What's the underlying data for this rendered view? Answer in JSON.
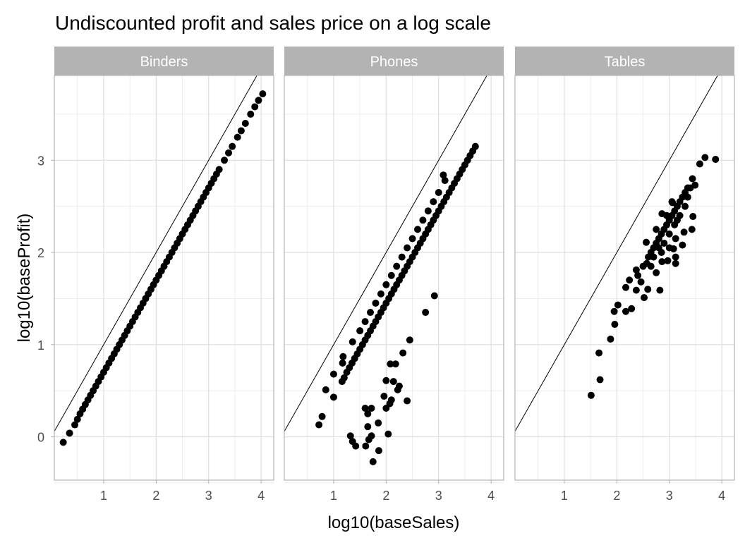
{
  "chart_data": {
    "type": "scatter",
    "title": "Undiscounted profit and  sales price on a log scale",
    "xlabel": "log10(baseSales)",
    "ylabel": "log10(baseProfit)",
    "xlim": [
      0.06,
      4.24
    ],
    "ylim": [
      -0.47,
      3.92
    ],
    "x_ticks": [
      1,
      2,
      3,
      4
    ],
    "y_ticks": [
      0,
      1,
      2,
      3
    ],
    "grid": true,
    "reference_line": {
      "slope": 1,
      "intercept": 0
    },
    "point_color": "#000000",
    "panels": [
      {
        "name": "Binders",
        "points": [
          [
            0.23,
            -0.06
          ],
          [
            0.35,
            0.04
          ],
          [
            0.45,
            0.13
          ],
          [
            0.5,
            0.19
          ],
          [
            0.55,
            0.25
          ],
          [
            0.6,
            0.3
          ],
          [
            0.65,
            0.35
          ],
          [
            0.7,
            0.4
          ],
          [
            0.75,
            0.45
          ],
          [
            0.8,
            0.5
          ],
          [
            0.85,
            0.55
          ],
          [
            0.9,
            0.6
          ],
          [
            0.95,
            0.65
          ],
          [
            1.0,
            0.7
          ],
          [
            1.05,
            0.75
          ],
          [
            1.1,
            0.8
          ],
          [
            1.15,
            0.85
          ],
          [
            1.2,
            0.9
          ],
          [
            1.25,
            0.95
          ],
          [
            1.3,
            1.0
          ],
          [
            1.35,
            1.05
          ],
          [
            1.4,
            1.1
          ],
          [
            1.45,
            1.15
          ],
          [
            1.5,
            1.2
          ],
          [
            1.55,
            1.25
          ],
          [
            1.6,
            1.3
          ],
          [
            1.65,
            1.35
          ],
          [
            1.7,
            1.4
          ],
          [
            1.75,
            1.45
          ],
          [
            1.8,
            1.5
          ],
          [
            1.85,
            1.55
          ],
          [
            1.9,
            1.6
          ],
          [
            1.95,
            1.65
          ],
          [
            2.0,
            1.7
          ],
          [
            2.05,
            1.75
          ],
          [
            2.1,
            1.8
          ],
          [
            2.15,
            1.85
          ],
          [
            2.2,
            1.9
          ],
          [
            2.25,
            1.95
          ],
          [
            2.3,
            2.0
          ],
          [
            2.35,
            2.05
          ],
          [
            2.4,
            2.1
          ],
          [
            2.45,
            2.15
          ],
          [
            2.5,
            2.2
          ],
          [
            2.55,
            2.25
          ],
          [
            2.6,
            2.3
          ],
          [
            2.65,
            2.35
          ],
          [
            2.7,
            2.4
          ],
          [
            2.75,
            2.45
          ],
          [
            2.8,
            2.5
          ],
          [
            2.85,
            2.55
          ],
          [
            2.9,
            2.6
          ],
          [
            2.95,
            2.65
          ],
          [
            3.0,
            2.7
          ],
          [
            3.05,
            2.75
          ],
          [
            3.1,
            2.8
          ],
          [
            3.15,
            2.85
          ],
          [
            3.2,
            2.9
          ],
          [
            3.3,
            3.0
          ],
          [
            3.38,
            3.08
          ],
          [
            3.45,
            3.15
          ],
          [
            3.55,
            3.25
          ],
          [
            3.62,
            3.32
          ],
          [
            3.7,
            3.4
          ],
          [
            3.8,
            3.5
          ],
          [
            3.88,
            3.58
          ],
          [
            3.95,
            3.65
          ],
          [
            4.03,
            3.72
          ]
        ]
      },
      {
        "name": "Phones",
        "points": [
          [
            0.72,
            0.13
          ],
          [
            0.78,
            0.22
          ],
          [
            0.85,
            0.51
          ],
          [
            1.0,
            0.43
          ],
          [
            1.0,
            0.68
          ],
          [
            1.16,
            0.6
          ],
          [
            1.2,
            0.64
          ],
          [
            1.25,
            0.7
          ],
          [
            1.3,
            0.75
          ],
          [
            1.35,
            0.8
          ],
          [
            1.4,
            0.85
          ],
          [
            1.45,
            0.9
          ],
          [
            1.5,
            0.95
          ],
          [
            1.55,
            1.0
          ],
          [
            1.6,
            1.05
          ],
          [
            1.65,
            1.1
          ],
          [
            1.7,
            1.15
          ],
          [
            1.75,
            1.2
          ],
          [
            1.8,
            1.25
          ],
          [
            1.85,
            1.3
          ],
          [
            1.9,
            1.35
          ],
          [
            1.95,
            1.4
          ],
          [
            2.0,
            1.45
          ],
          [
            2.05,
            1.5
          ],
          [
            2.1,
            1.55
          ],
          [
            2.15,
            1.6
          ],
          [
            2.2,
            1.65
          ],
          [
            2.25,
            1.7
          ],
          [
            2.3,
            1.75
          ],
          [
            2.35,
            1.8
          ],
          [
            2.4,
            1.85
          ],
          [
            2.45,
            1.9
          ],
          [
            2.5,
            1.95
          ],
          [
            2.55,
            2.0
          ],
          [
            2.6,
            2.05
          ],
          [
            2.65,
            2.1
          ],
          [
            2.7,
            2.15
          ],
          [
            2.75,
            2.2
          ],
          [
            2.8,
            2.25
          ],
          [
            2.85,
            2.3
          ],
          [
            2.9,
            2.35
          ],
          [
            2.95,
            2.4
          ],
          [
            3.0,
            2.45
          ],
          [
            3.05,
            2.5
          ],
          [
            3.1,
            2.55
          ],
          [
            3.15,
            2.6
          ],
          [
            3.2,
            2.65
          ],
          [
            3.25,
            2.7
          ],
          [
            3.3,
            2.75
          ],
          [
            3.35,
            2.8
          ],
          [
            3.4,
            2.85
          ],
          [
            3.45,
            2.9
          ],
          [
            3.5,
            2.95
          ],
          [
            3.55,
            3.0
          ],
          [
            3.6,
            3.05
          ],
          [
            3.65,
            3.1
          ],
          [
            3.7,
            3.15
          ],
          [
            1.17,
            0.8
          ],
          [
            1.18,
            0.87
          ],
          [
            1.36,
            1.03
          ],
          [
            1.5,
            1.15
          ],
          [
            1.6,
            1.25
          ],
          [
            1.7,
            1.35
          ],
          [
            1.8,
            1.45
          ],
          [
            1.9,
            1.55
          ],
          [
            2.0,
            1.65
          ],
          [
            2.1,
            1.75
          ],
          [
            2.2,
            1.85
          ],
          [
            2.3,
            1.95
          ],
          [
            2.4,
            2.05
          ],
          [
            2.5,
            2.15
          ],
          [
            2.6,
            2.25
          ],
          [
            2.7,
            2.35
          ],
          [
            2.8,
            2.45
          ],
          [
            2.9,
            2.55
          ],
          [
            3.0,
            2.65
          ],
          [
            3.09,
            2.84
          ],
          [
            3.12,
            2.78
          ],
          [
            2.92,
            1.53
          ],
          [
            2.75,
            1.35
          ],
          [
            2.45,
            1.05
          ],
          [
            2.32,
            0.91
          ],
          [
            2.08,
            0.79
          ],
          [
            2.18,
            0.79
          ],
          [
            2.0,
            0.61
          ],
          [
            2.14,
            0.6
          ],
          [
            2.25,
            0.55
          ],
          [
            2.22,
            0.51
          ],
          [
            1.96,
            0.44
          ],
          [
            2.1,
            0.4
          ],
          [
            2.07,
            0.36
          ],
          [
            2.4,
            0.39
          ],
          [
            2.0,
            0.31
          ],
          [
            1.6,
            0.31
          ],
          [
            1.72,
            0.31
          ],
          [
            1.65,
            0.25
          ],
          [
            1.85,
            0.15
          ],
          [
            1.65,
            0.11
          ],
          [
            2.04,
            0.03
          ],
          [
            1.32,
            0.01
          ],
          [
            1.72,
            0.01
          ],
          [
            1.36,
            -0.05
          ],
          [
            1.67,
            -0.03
          ],
          [
            1.42,
            -0.1
          ],
          [
            1.61,
            -0.1
          ],
          [
            1.86,
            -0.15
          ],
          [
            1.75,
            -0.27
          ]
        ]
      },
      {
        "name": "Tables",
        "points": [
          [
            1.51,
            0.45
          ],
          [
            1.68,
            0.62
          ],
          [
            1.66,
            0.91
          ],
          [
            1.88,
            1.06
          ],
          [
            1.96,
            1.22
          ],
          [
            1.95,
            1.36
          ],
          [
            2.02,
            1.43
          ],
          [
            2.17,
            1.36
          ],
          [
            2.28,
            1.39
          ],
          [
            2.52,
            1.51
          ],
          [
            2.17,
            1.62
          ],
          [
            2.37,
            1.59
          ],
          [
            2.24,
            1.7
          ],
          [
            2.59,
            1.6
          ],
          [
            2.82,
            1.59
          ],
          [
            2.46,
            1.68
          ],
          [
            2.37,
            1.81
          ],
          [
            2.75,
            1.78
          ],
          [
            2.57,
            1.88
          ],
          [
            2.86,
            1.9
          ],
          [
            2.97,
            1.91
          ],
          [
            3.12,
            1.88
          ],
          [
            3.12,
            1.95
          ],
          [
            3.08,
            2.04
          ],
          [
            3.25,
            2.08
          ],
          [
            2.56,
            2.11
          ],
          [
            3.12,
            2.15
          ],
          [
            3.28,
            2.22
          ],
          [
            3.43,
            2.25
          ],
          [
            3.45,
            2.39
          ],
          [
            2.86,
            2.42
          ],
          [
            3.06,
            2.54
          ],
          [
            3.44,
            2.8
          ],
          [
            3.49,
            2.73
          ],
          [
            3.58,
            2.96
          ],
          [
            3.68,
            3.03
          ],
          [
            3.88,
            3.01
          ],
          [
            2.4,
            1.75
          ],
          [
            2.5,
            1.85
          ],
          [
            2.6,
            1.95
          ],
          [
            2.65,
            2.0
          ],
          [
            2.7,
            2.05
          ],
          [
            2.75,
            2.1
          ],
          [
            2.8,
            2.15
          ],
          [
            2.85,
            2.2
          ],
          [
            2.9,
            2.25
          ],
          [
            2.95,
            2.3
          ],
          [
            3.0,
            2.35
          ],
          [
            3.05,
            2.4
          ],
          [
            3.1,
            2.45
          ],
          [
            3.15,
            2.5
          ],
          [
            3.2,
            2.55
          ],
          [
            3.25,
            2.6
          ],
          [
            3.3,
            2.65
          ],
          [
            3.35,
            2.7
          ],
          [
            2.7,
            1.95
          ],
          [
            2.8,
            2.05
          ],
          [
            2.9,
            2.1
          ],
          [
            3.0,
            2.2
          ],
          [
            3.1,
            2.3
          ],
          [
            2.75,
            2.25
          ],
          [
            2.95,
            2.4
          ],
          [
            3.05,
            2.55
          ],
          [
            3.2,
            2.4
          ],
          [
            3.3,
            2.5
          ],
          [
            2.65,
            1.85
          ],
          [
            2.85,
            2.0
          ],
          [
            3.0,
            2.05
          ],
          [
            3.15,
            2.35
          ],
          [
            3.35,
            2.6
          ],
          [
            3.4,
            2.7
          ]
        ]
      }
    ]
  }
}
